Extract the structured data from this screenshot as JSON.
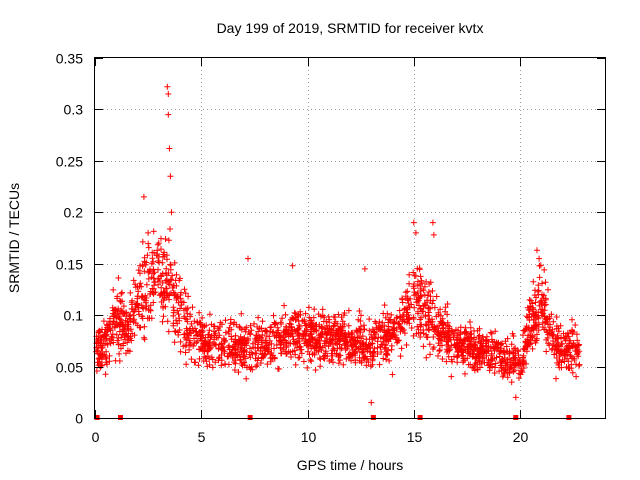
{
  "chart_data": {
    "type": "scatter",
    "title": "Day 199 of 2019, SRMTID for receiver kvtx",
    "xlabel": "GPS time / hours",
    "ylabel": "SRMTID / TECUs",
    "xlim": [
      0,
      24
    ],
    "ylim": [
      0,
      0.35
    ],
    "xticks": [
      "0",
      "5",
      "10",
      "15",
      "20"
    ],
    "xtick_values": [
      0,
      5,
      10,
      15,
      20
    ],
    "yticks": [
      "0",
      "0.05",
      "0.1",
      "0.15",
      "0.2",
      "0.25",
      "0.3",
      "0.35"
    ],
    "ytick_values": [
      0,
      0.05,
      0.1,
      0.15,
      0.2,
      0.25,
      0.3,
      0.35
    ],
    "grid": true,
    "marker": "+",
    "series_color": "#ff0000",
    "zero_markers_x": [
      0.1,
      1.2,
      7.3,
      13.1,
      15.3,
      19.8,
      22.3
    ],
    "profile": [
      {
        "x": 0.0,
        "y": 0.065
      },
      {
        "x": 0.5,
        "y": 0.075
      },
      {
        "x": 1.0,
        "y": 0.095
      },
      {
        "x": 1.5,
        "y": 0.085
      },
      {
        "x": 2.0,
        "y": 0.11
      },
      {
        "x": 2.5,
        "y": 0.13
      },
      {
        "x": 3.0,
        "y": 0.14
      },
      {
        "x": 3.5,
        "y": 0.13
      },
      {
        "x": 4.0,
        "y": 0.1
      },
      {
        "x": 4.5,
        "y": 0.085
      },
      {
        "x": 5.0,
        "y": 0.075
      },
      {
        "x": 6.0,
        "y": 0.07
      },
      {
        "x": 7.0,
        "y": 0.068
      },
      {
        "x": 8.0,
        "y": 0.072
      },
      {
        "x": 9.0,
        "y": 0.082
      },
      {
        "x": 10.0,
        "y": 0.078
      },
      {
        "x": 11.0,
        "y": 0.078
      },
      {
        "x": 12.0,
        "y": 0.075
      },
      {
        "x": 13.0,
        "y": 0.07
      },
      {
        "x": 14.0,
        "y": 0.082
      },
      {
        "x": 14.5,
        "y": 0.095
      },
      {
        "x": 15.0,
        "y": 0.12
      },
      {
        "x": 15.5,
        "y": 0.11
      },
      {
        "x": 16.0,
        "y": 0.09
      },
      {
        "x": 17.0,
        "y": 0.07
      },
      {
        "x": 18.0,
        "y": 0.068
      },
      {
        "x": 19.0,
        "y": 0.062
      },
      {
        "x": 19.5,
        "y": 0.058
      },
      {
        "x": 20.0,
        "y": 0.055
      },
      {
        "x": 20.5,
        "y": 0.09
      },
      {
        "x": 21.0,
        "y": 0.115
      },
      {
        "x": 21.5,
        "y": 0.075
      },
      {
        "x": 22.0,
        "y": 0.07
      },
      {
        "x": 22.8,
        "y": 0.065
      }
    ],
    "spikes": [
      {
        "x": 2.3,
        "y": 0.215
      },
      {
        "x": 2.5,
        "y": 0.18
      },
      {
        "x": 3.0,
        "y": 0.17
      },
      {
        "x": 3.4,
        "y": 0.322
      },
      {
        "x": 3.45,
        "y": 0.315
      },
      {
        "x": 3.45,
        "y": 0.295
      },
      {
        "x": 3.5,
        "y": 0.262
      },
      {
        "x": 3.55,
        "y": 0.235
      },
      {
        "x": 3.6,
        "y": 0.2
      },
      {
        "x": 7.2,
        "y": 0.155
      },
      {
        "x": 9.3,
        "y": 0.148
      },
      {
        "x": 12.7,
        "y": 0.145
      },
      {
        "x": 15.0,
        "y": 0.19
      },
      {
        "x": 15.1,
        "y": 0.18
      },
      {
        "x": 15.9,
        "y": 0.19
      },
      {
        "x": 15.95,
        "y": 0.178
      },
      {
        "x": 20.8,
        "y": 0.163
      },
      {
        "x": 20.9,
        "y": 0.155
      },
      {
        "x": 13.0,
        "y": 0.015
      },
      {
        "x": 19.8,
        "y": 0.02
      }
    ],
    "n_points": 2300
  }
}
